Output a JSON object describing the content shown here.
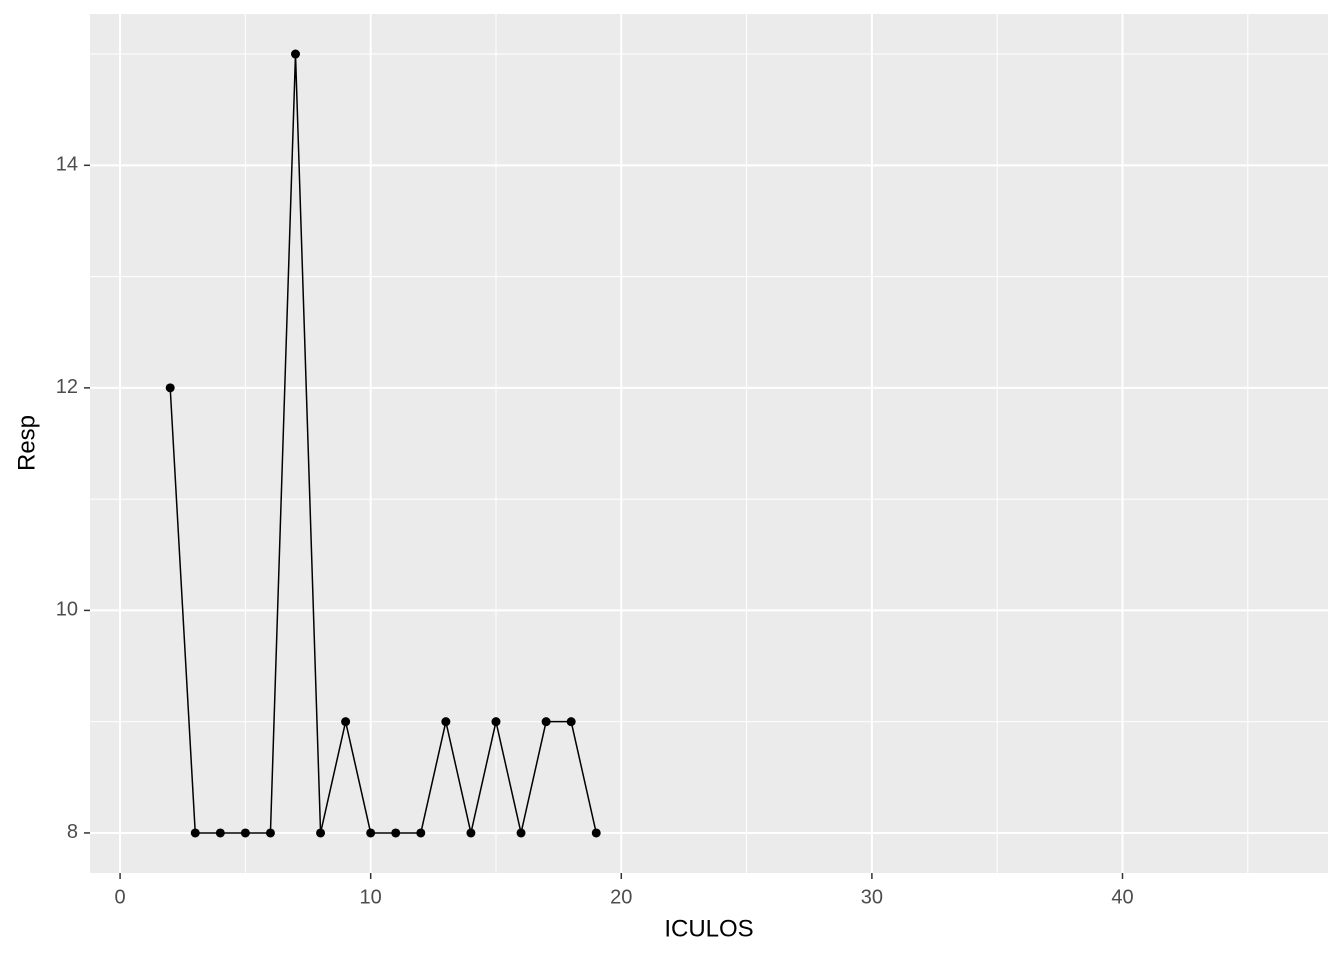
{
  "chart_data": {
    "type": "line",
    "x_label": "ICULOS",
    "y_label": "Resp",
    "x": [
      2,
      3,
      4,
      5,
      6,
      7,
      8,
      9,
      10,
      11,
      12,
      13,
      14,
      15,
      16,
      17,
      18,
      19
    ],
    "values": [
      12,
      8,
      8,
      8,
      8,
      15,
      8,
      9,
      8,
      8,
      8,
      9,
      8,
      9,
      8,
      9,
      9,
      8
    ],
    "color": "#000000",
    "xlim": [
      -1.2,
      48.2
    ],
    "ylim": [
      7.64,
      15.36
    ],
    "xticks": [
      0,
      10,
      20,
      30,
      40
    ],
    "yticks": [
      8,
      10,
      12,
      14
    ],
    "xminor": [
      5,
      15,
      25,
      35,
      45
    ],
    "yminor": [
      9,
      11,
      13,
      15
    ],
    "grid": true,
    "markers": true
  }
}
